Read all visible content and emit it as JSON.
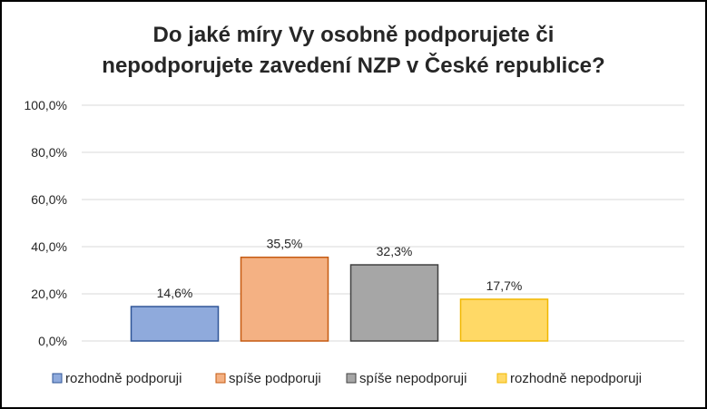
{
  "chart_data": {
    "type": "bar",
    "title_line1": "Do jaké míry Vy osobně podporujete či",
    "title_line2": "nepodporujete zavedení NZP v České republice?",
    "categories": [
      "rozhodně podporuji",
      "spíše podporuji",
      "spíše nepodporuji",
      "rozhodně nepodporuji"
    ],
    "values": [
      14.6,
      35.5,
      32.3,
      17.7
    ],
    "data_labels": [
      "14,6%",
      "35,5%",
      "32,3%",
      "17,7%"
    ],
    "fill_colors": [
      "#8faadc",
      "#f4b183",
      "#a6a6a6",
      "#ffd966"
    ],
    "border_colors": [
      "#2f5597",
      "#c55a11",
      "#404040",
      "#f1b800"
    ],
    "ylim": [
      0,
      100
    ],
    "yticks": [
      0,
      20,
      40,
      60,
      80,
      100
    ],
    "ytick_labels": [
      "0,0%",
      "20,0%",
      "40,0%",
      "60,0%",
      "80,0%",
      "100,0%"
    ],
    "grid": true,
    "legend_position": "bottom"
  }
}
